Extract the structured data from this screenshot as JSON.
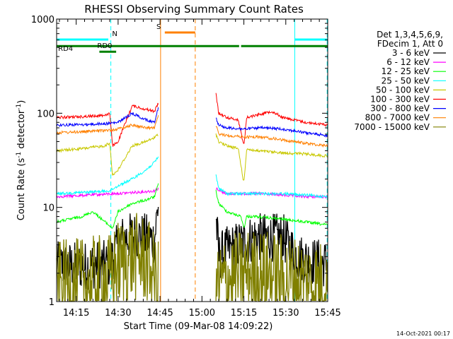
{
  "chart_data": {
    "type": "line",
    "title": "RHESSI Observing Summary Count Rates",
    "xlabel": "Start Time (09-Mar-08 14:09:22)",
    "ylabel_main": "Count Rate (s",
    "ylabel_sup1": "-1",
    "ylabel_mid": " detector",
    "ylabel_sup2": "-1",
    "ylabel_end": ")",
    "yscale": "log",
    "ylim": [
      1,
      1000
    ],
    "xlim_min": [
      -1,
      96
    ],
    "x_ticks": [
      {
        "min": 6,
        "label": "14:15"
      },
      {
        "min": 21,
        "label": "14:30"
      },
      {
        "min": 36,
        "label": "14:45"
      },
      {
        "min": 51,
        "label": "15:00"
      },
      {
        "min": 66,
        "label": "15:15"
      },
      {
        "min": 81,
        "label": "15:30"
      },
      {
        "min": 96,
        "label": "15:45"
      }
    ],
    "y_ticks": [
      {
        "value": 1,
        "label": "1"
      },
      {
        "value": 10,
        "label": "10"
      },
      {
        "value": 100,
        "label": "100"
      },
      {
        "value": 1000,
        "label": "1000"
      }
    ],
    "legend": {
      "placement": "top-right",
      "header": [
        "Det 1,3,4,5,6,9,",
        "FDecim 1, Att 0"
      ]
    },
    "timestamp": "14-Oct-2021 00:17",
    "gaps": [
      [
        38,
        56
      ]
    ],
    "series": [
      {
        "name": "3 - 6 keV",
        "color": "#000000",
        "segments": [
          {
            "x": [
              -1,
              8,
              18,
              22,
              26,
              31,
              34,
              35.5
            ],
            "y": [
              2.4,
              2.4,
              2.5,
              4.5,
              5,
              4.8,
              4.5,
              12
            ]
          },
          {
            "x": [
              56,
              57,
              60,
              64,
              70,
              80,
              85,
              90,
              96
            ],
            "y": [
              8,
              3,
              3.5,
              4,
              4.8,
              4.8,
              3,
              2.7,
              2.5
            ]
          }
        ]
      },
      {
        "name": "6 - 12 keV",
        "color": "#ff00ff",
        "segments": [
          {
            "x": [
              -1,
              10,
              20,
              28,
              34,
              35.5
            ],
            "y": [
              13,
              13.5,
              14,
              14.5,
              15,
              16
            ]
          },
          {
            "x": [
              56,
              57,
              60,
              66,
              72,
              80,
              88,
              96
            ],
            "y": [
              16,
              15,
              14,
              14,
              14,
              13.5,
              13,
              13
            ]
          }
        ]
      },
      {
        "name": "12 - 25 keV",
        "color": "#00ff00",
        "segments": [
          {
            "x": [
              -1,
              8,
              12,
              19,
              21,
              26,
              31,
              34,
              35.5
            ],
            "y": [
              7,
              8,
              9,
              6,
              9,
              11,
              12,
              13,
              18
            ]
          },
          {
            "x": [
              56,
              57,
              60,
              65,
              66,
              67,
              70,
              80,
              88,
              96
            ],
            "y": [
              15,
              11,
              9,
              8,
              6,
              8,
              8,
              7.5,
              7,
              6.5
            ]
          }
        ]
      },
      {
        "name": "25 - 50 keV",
        "color": "#00ffff",
        "segments": [
          {
            "x": [
              -1,
              10,
              18,
              21,
              26,
              31,
              34,
              35.5
            ],
            "y": [
              14,
              14.5,
              15,
              17,
              20,
              25,
              30,
              35
            ]
          },
          {
            "x": [
              56,
              57,
              60,
              66,
              72,
              80,
              88,
              96
            ],
            "y": [
              22,
              16,
              14,
              14,
              14,
              14,
              13.5,
              13
            ]
          }
        ]
      },
      {
        "name": "50 - 100 keV",
        "color": "#c8c800",
        "segments": [
          {
            "x": [
              -1,
              8,
              16,
              18,
              19,
              21,
              26,
              31,
              34,
              35.5
            ],
            "y": [
              40,
              42,
              45,
              48,
              22,
              25,
              45,
              50,
              55,
              60
            ]
          },
          {
            "x": [
              56,
              57,
              60,
              64,
              66,
              67,
              70,
              80,
              88,
              96
            ],
            "y": [
              60,
              50,
              45,
              42,
              18,
              42,
              40,
              38,
              37,
              35
            ]
          }
        ]
      },
      {
        "name": "100 - 300 keV",
        "color": "#ff0000",
        "segments": [
          {
            "x": [
              -1,
              8,
              16,
              18,
              19,
              21,
              26,
              31,
              34,
              35.5
            ],
            "y": [
              90,
              92,
              95,
              100,
              45,
              50,
              120,
              110,
              105,
              130
            ]
          },
          {
            "x": [
              56,
              57,
              60,
              64,
              66,
              67,
              70,
              76,
              80,
              88,
              96
            ],
            "y": [
              160,
              100,
              90,
              85,
              45,
              90,
              95,
              105,
              90,
              80,
              75
            ]
          }
        ]
      },
      {
        "name": "300 - 800 keV",
        "color": "#0000ff",
        "segments": [
          {
            "x": [
              -1,
              10,
              18,
              21,
              26,
              31,
              34,
              35.5
            ],
            "y": [
              75,
              76,
              78,
              80,
              100,
              85,
              80,
              120
            ]
          },
          {
            "x": [
              56,
              57,
              60,
              66,
              72,
              80,
              88,
              96
            ],
            "y": [
              90,
              75,
              70,
              68,
              70,
              68,
              62,
              58
            ]
          }
        ]
      },
      {
        "name": "800 - 7000 keV",
        "color": "#ff8000",
        "segments": [
          {
            "x": [
              -1,
              10,
              18,
              21,
              26,
              31,
              34,
              35.5
            ],
            "y": [
              62,
              64,
              66,
              68,
              75,
              70,
              70,
              95
            ]
          },
          {
            "x": [
              56,
              57,
              60,
              66,
              72,
              80,
              88,
              96
            ],
            "y": [
              75,
              60,
              58,
              56,
              56,
              52,
              48,
              45
            ]
          }
        ]
      },
      {
        "name": "7000 - 15000 keV",
        "color": "#808000",
        "segments": [
          {
            "x": [
              -1,
              8,
              18,
              21,
              26,
              31,
              34,
              35.5
            ],
            "y": [
              1.5,
              1.6,
              1.8,
              2.5,
              3,
              2.8,
              1.8,
              1.5
            ]
          },
          {
            "x": [
              56,
              57,
              60,
              66,
              72,
              80,
              88,
              96
            ],
            "y": [
              1.5,
              1.5,
              1.7,
              2,
              2,
              1.8,
              1.6,
              1.5
            ]
          }
        ]
      }
    ],
    "annotations": {
      "vertical_lines": [
        {
          "min": 18.4,
          "color": "#00ffff",
          "dash": true
        },
        {
          "min": 36.2,
          "color": "#ff8000",
          "dash": false
        },
        {
          "min": 48.6,
          "color": "#ff8000",
          "dash": true
        },
        {
          "min": 84.2,
          "color": "#00ffff",
          "dash": false
        },
        {
          "min": 95.8,
          "color": "#00ffff",
          "dash": true
        }
      ],
      "flag_bars": [
        {
          "label": "N",
          "color": "#00ffff",
          "segments": [
            [
              -1,
              17.5
            ],
            [
              84.2,
              96
            ]
          ],
          "level": 0.06,
          "label_min": 19.8
        },
        {
          "label": "S",
          "color": "#ff8000",
          "segments": [
            [
              37.7,
              48.6
            ]
          ],
          "level": 0.035,
          "label_min": 35.5
        },
        {
          "label": "RD4",
          "color": "#008000",
          "segments": [
            [
              -1,
              64.3
            ],
            [
              65,
              96
            ]
          ],
          "level": 0.083,
          "label_min": 2.2
        },
        {
          "label": "RD0",
          "color": "#008000",
          "segments": [
            [
              14.3,
              20.3
            ]
          ],
          "level": 0.103,
          "label_min": 16.2
        }
      ]
    }
  }
}
